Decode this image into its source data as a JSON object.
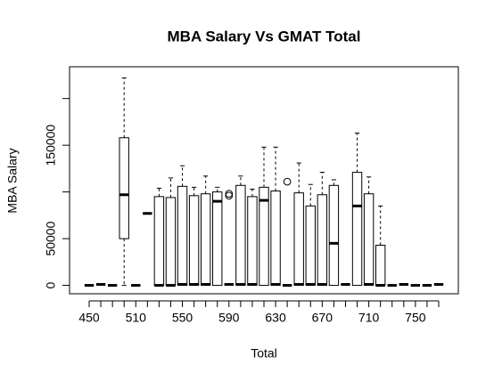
{
  "chart_data": {
    "type": "boxplot",
    "title": "MBA Salary Vs GMAT Total",
    "xlabel": "Total",
    "ylabel": "MBA Salary",
    "categories": [
      450,
      null,
      null,
      null,
      510,
      null,
      null,
      null,
      550,
      null,
      null,
      null,
      590,
      null,
      null,
      null,
      630,
      null,
      null,
      null,
      670,
      null,
      null,
      null,
      710,
      null,
      null,
      null,
      750,
      null,
      null
    ],
    "boxes": [
      {
        "stats": [
          0,
          0,
          0,
          0,
          0
        ],
        "outliers": []
      },
      {
        "stats": [
          1000,
          1000,
          1000,
          1000,
          1000
        ],
        "outliers": []
      },
      {
        "stats": [
          0,
          0,
          0,
          0,
          0
        ],
        "outliers": []
      },
      {
        "stats": [
          0,
          50000,
          97000,
          158000,
          222000
        ],
        "outliers": []
      },
      {
        "stats": [
          0,
          0,
          0,
          0,
          0
        ],
        "outliers": []
      },
      {
        "stats": [
          77000,
          77000,
          77000,
          77000,
          77000
        ],
        "outliers": []
      },
      {
        "stats": [
          0,
          0,
          0,
          95000,
          104000
        ],
        "outliers": []
      },
      {
        "stats": [
          0,
          0,
          0,
          94000,
          115000
        ],
        "outliers": []
      },
      {
        "stats": [
          0,
          0,
          1000,
          106000,
          128000
        ],
        "outliers": []
      },
      {
        "stats": [
          0,
          0,
          1000,
          96000,
          105000
        ],
        "outliers": []
      },
      {
        "stats": [
          0,
          0,
          1000,
          98000,
          117000
        ],
        "outliers": []
      },
      {
        "stats": [
          0,
          0,
          90000,
          100000,
          105000
        ],
        "outliers": []
      },
      {
        "stats": [
          1000,
          1000,
          1000,
          1000,
          1000
        ],
        "outliers": [
          98000,
          96000
        ]
      },
      {
        "stats": [
          0,
          0,
          1000,
          107000,
          117000
        ],
        "outliers": []
      },
      {
        "stats": [
          0,
          0,
          1000,
          95000,
          103000
        ],
        "outliers": []
      },
      {
        "stats": [
          0,
          0,
          91000,
          105000,
          148000
        ],
        "outliers": []
      },
      {
        "stats": [
          0,
          0,
          1000,
          101000,
          148000
        ],
        "outliers": []
      },
      {
        "stats": [
          0,
          0,
          0,
          0,
          0
        ],
        "outliers": [
          111000
        ]
      },
      {
        "stats": [
          0,
          0,
          1000,
          99000,
          131000
        ],
        "outliers": []
      },
      {
        "stats": [
          0,
          0,
          1000,
          85000,
          108000
        ],
        "outliers": []
      },
      {
        "stats": [
          0,
          0,
          1000,
          97000,
          121000
        ],
        "outliers": []
      },
      {
        "stats": [
          0,
          0,
          45000,
          107000,
          113000
        ],
        "outliers": []
      },
      {
        "stats": [
          1000,
          1000,
          1000,
          1000,
          1000
        ],
        "outliers": []
      },
      {
        "stats": [
          0,
          0,
          85000,
          121000,
          163000
        ],
        "outliers": []
      },
      {
        "stats": [
          0,
          0,
          1000,
          98000,
          116000
        ],
        "outliers": []
      },
      {
        "stats": [
          0,
          0,
          0,
          43000,
          85000
        ],
        "outliers": []
      },
      {
        "stats": [
          0,
          0,
          0,
          0,
          0
        ],
        "outliers": []
      },
      {
        "stats": [
          1000,
          1000,
          1000,
          1000,
          1000
        ],
        "outliers": []
      },
      {
        "stats": [
          0,
          0,
          0,
          0,
          0
        ],
        "outliers": []
      },
      {
        "stats": [
          0,
          0,
          0,
          0,
          0
        ],
        "outliers": []
      },
      {
        "stats": [
          1000,
          1000,
          1000,
          1000,
          1000
        ],
        "outliers": []
      }
    ],
    "ylim": [
      -9000,
      234000
    ],
    "yticks": [
      0,
      50000,
      {
        "value": 100000,
        "label": null
      },
      150000,
      {
        "value": 200000,
        "label": null
      }
    ]
  }
}
